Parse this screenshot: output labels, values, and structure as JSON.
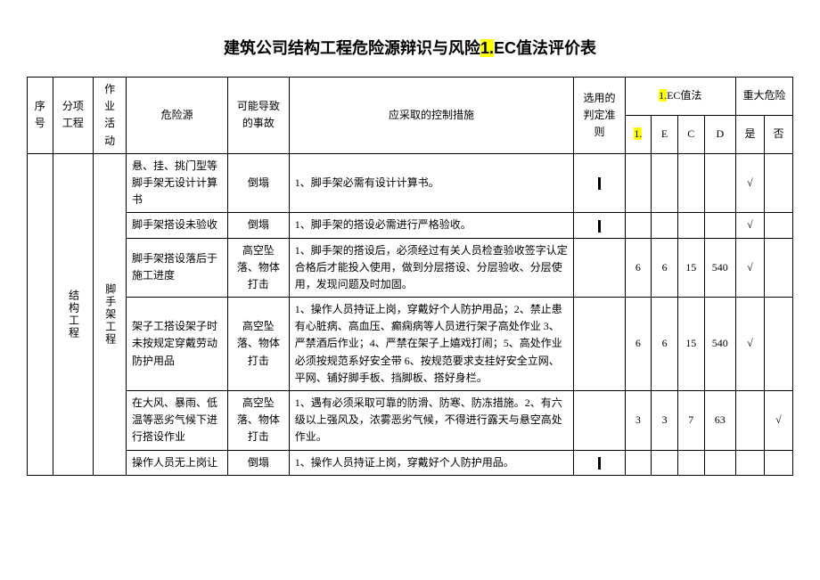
{
  "title_prefix": "建筑公司结构工程危险源辩识与风险",
  "title_hl1": "1.",
  "title_suffix": "EC值法评价表",
  "headers": {
    "seq": "序号",
    "sub": "分项工程",
    "activity": "作业活动",
    "hazard": "危险源",
    "accident": "可能导致的事故",
    "measure": "应采取的控制措施",
    "criteria": "选用的判定准则",
    "lec_hl": "1.",
    "lec_suffix": "EC值法",
    "major_risk": "重大危险",
    "L_hl": "1.",
    "E": "E",
    "C": "C",
    "D": "D",
    "yes": "是",
    "no": "否"
  },
  "sub_project": "结构工程",
  "activity_label": "脚手架工程",
  "rows": [
    {
      "hazard": "悬、挂、挑门型等脚手架无设计计算书",
      "accident": "倒塌",
      "measure": "1、脚手架必需有设计计算书。",
      "criteria_bar": true,
      "L": "",
      "E": "",
      "C": "",
      "D": "",
      "yes": "√",
      "no": ""
    },
    {
      "hazard": "脚手架搭设未验收",
      "accident": "倒塌",
      "measure": "1、脚手架的搭设必需进行严格验收。",
      "criteria_bar": true,
      "L": "",
      "E": "",
      "C": "",
      "D": "",
      "yes": "√",
      "no": ""
    },
    {
      "hazard": "脚手架搭设落后于施工进度",
      "accident": "高空坠落、物体打击",
      "measure": "1、脚手架的搭设后，必须经过有关人员检查验收签字认定合格后才能投入使用，做到分层搭设、分层验收、分层使用，发现问题及时加固。",
      "criteria_bar": false,
      "L": "6",
      "E": "6",
      "C": "15",
      "D": "540",
      "yes": "√",
      "no": ""
    },
    {
      "hazard": "架子工搭设架子时未按规定穿戴劳动防护用品",
      "accident": "高空坠落、物体打击",
      "measure": "1、操作人员持证上岗，穿戴好个人防护用品；2、禁止患有心脏病、高血压、癫痫病等人员进行架子高处作业 3、严禁酒后作业；4、严禁在架子上嬉戏打闹；5、高处作业必须按规范系好安全带 6、按规范要求支挂好安全立网、平网、铺好脚手板、挡脚板、搭好身栏。",
      "criteria_bar": false,
      "L": "6",
      "E": "6",
      "C": "15",
      "D": "540",
      "yes": "√",
      "no": ""
    },
    {
      "hazard": "在大风、暴雨、低温等恶劣气候下进行搭设作业",
      "accident": "高空坠落、物体打击",
      "measure": "1、遇有必须采取可靠的防滑、防寒、防冻措施。2、有六级以上强风及，浓雾恶劣气候，不得进行露天与悬空高处作业。",
      "criteria_bar": false,
      "L": "3",
      "E": "3",
      "C": "7",
      "D": "63",
      "yes": "",
      "no": "√"
    },
    {
      "hazard": "操作人员无上岗让",
      "accident": "倒塌",
      "measure": "1、操作人员持证上岗，穿戴好个人防护用品。",
      "criteria_bar": true,
      "L": "",
      "E": "",
      "C": "",
      "D": "",
      "yes": "",
      "no": ""
    }
  ]
}
